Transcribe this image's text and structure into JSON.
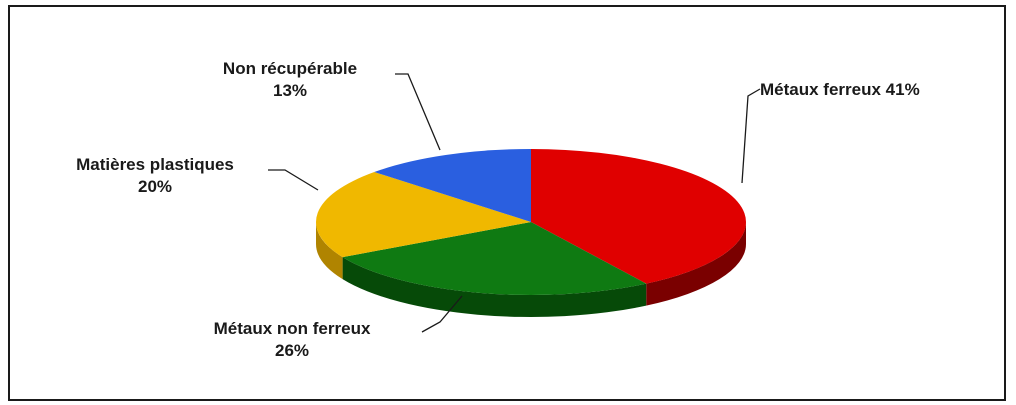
{
  "chart_data": {
    "type": "pie",
    "three_d": true,
    "slices": [
      {
        "label": "Métaux ferreux",
        "value": 41,
        "value_text": "41%",
        "color": "#e00000",
        "side_color": "#7a0000"
      },
      {
        "label": "Métaux non ferreux",
        "value": 26,
        "value_text": "26%",
        "color": "#0f7a12",
        "side_color": "#064a08"
      },
      {
        "label": "Matières plastiques",
        "value": 20,
        "value_text": "20%",
        "color": "#f0b800",
        "side_color": "#b08400"
      },
      {
        "label": "Non récupérable",
        "value": 13,
        "value_text": "13%",
        "color": "#2a5fe0",
        "side_color": "#173a90"
      }
    ],
    "title": "",
    "legend": "none"
  }
}
